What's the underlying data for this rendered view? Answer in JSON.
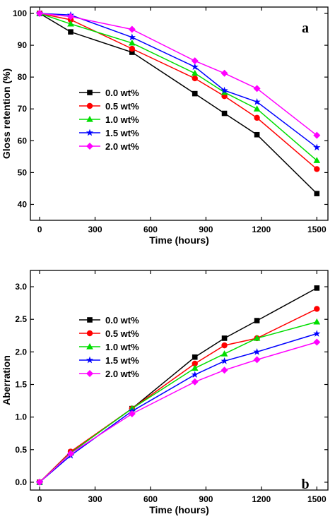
{
  "colors": {
    "0.0 wt%": "#000000",
    "0.5 wt%": "#ff0000",
    "1.0 wt%": "#00dd00",
    "1.5 wt%": "#0000ff",
    "2.0 wt%": "#ff00ff"
  },
  "chart_data": [
    {
      "type": "line",
      "panel_label": "a",
      "xlabel": "Time  (hours)",
      "ylabel": "Gloss retention  (%)",
      "xlim": [
        -50,
        1560
      ],
      "ylim": [
        35,
        102
      ],
      "x_ticks": [
        0,
        300,
        600,
        900,
        1200,
        1500
      ],
      "y_ticks": [
        40,
        50,
        60,
        70,
        80,
        90,
        100
      ],
      "y_tick_labels": [
        "40",
        "50",
        "60",
        "70",
        "80",
        "90",
        "100"
      ],
      "x": [
        0,
        168,
        500,
        840,
        1000,
        1176,
        1500
      ],
      "legend_position": "middle-left",
      "series": [
        {
          "name": "0.0 wt%",
          "marker": "square",
          "values": [
            100,
            94.2,
            87.8,
            74.8,
            68.6,
            61.9,
            43.4
          ]
        },
        {
          "name": "0.5 wt%",
          "marker": "circle",
          "values": [
            100,
            98.0,
            88.9,
            79.6,
            74.0,
            67.2,
            51.1
          ]
        },
        {
          "name": "1.0 wt%",
          "marker": "triangle",
          "values": [
            100,
            96.7,
            90.7,
            81.2,
            75.2,
            70.0,
            53.8
          ]
        },
        {
          "name": "1.5 wt%",
          "marker": "star",
          "values": [
            100,
            99.5,
            92.5,
            83.2,
            75.8,
            72.2,
            57.9
          ]
        },
        {
          "name": "2.0 wt%",
          "marker": "diamond",
          "values": [
            100,
            99.0,
            95.0,
            85.1,
            81.2,
            76.4,
            61.7
          ]
        }
      ]
    },
    {
      "type": "line",
      "panel_label": "b",
      "xlabel": "Time  (hours)",
      "ylabel": "Aberration",
      "xlim": [
        -50,
        1560
      ],
      "ylim": [
        -0.12,
        3.25
      ],
      "x_ticks": [
        0,
        300,
        600,
        900,
        1200,
        1500
      ],
      "y_ticks": [
        0,
        0.5,
        1.0,
        1.5,
        2.0,
        2.5,
        3.0
      ],
      "y_tick_labels": [
        "0.0",
        "0.5",
        "1.0",
        "1.5",
        "2.0",
        "2.5",
        "3.0"
      ],
      "x": [
        0,
        168,
        500,
        840,
        1000,
        1176,
        1500
      ],
      "legend_position": "top-left",
      "series": [
        {
          "name": "0.0 wt%",
          "marker": "square",
          "values": [
            0,
            0.46,
            1.13,
            1.92,
            2.21,
            2.48,
            2.98
          ]
        },
        {
          "name": "0.5 wt%",
          "marker": "circle",
          "values": [
            0,
            0.47,
            1.13,
            1.82,
            2.1,
            2.21,
            2.66
          ]
        },
        {
          "name": "1.0 wt%",
          "marker": "triangle",
          "values": [
            0,
            0.45,
            1.13,
            1.75,
            1.97,
            2.21,
            2.46
          ]
        },
        {
          "name": "1.5 wt%",
          "marker": "star",
          "values": [
            0,
            0.41,
            1.09,
            1.65,
            1.86,
            2.0,
            2.28
          ]
        },
        {
          "name": "2.0 wt%",
          "marker": "diamond",
          "values": [
            0,
            0.44,
            1.05,
            1.54,
            1.72,
            1.88,
            2.15
          ]
        }
      ]
    }
  ]
}
